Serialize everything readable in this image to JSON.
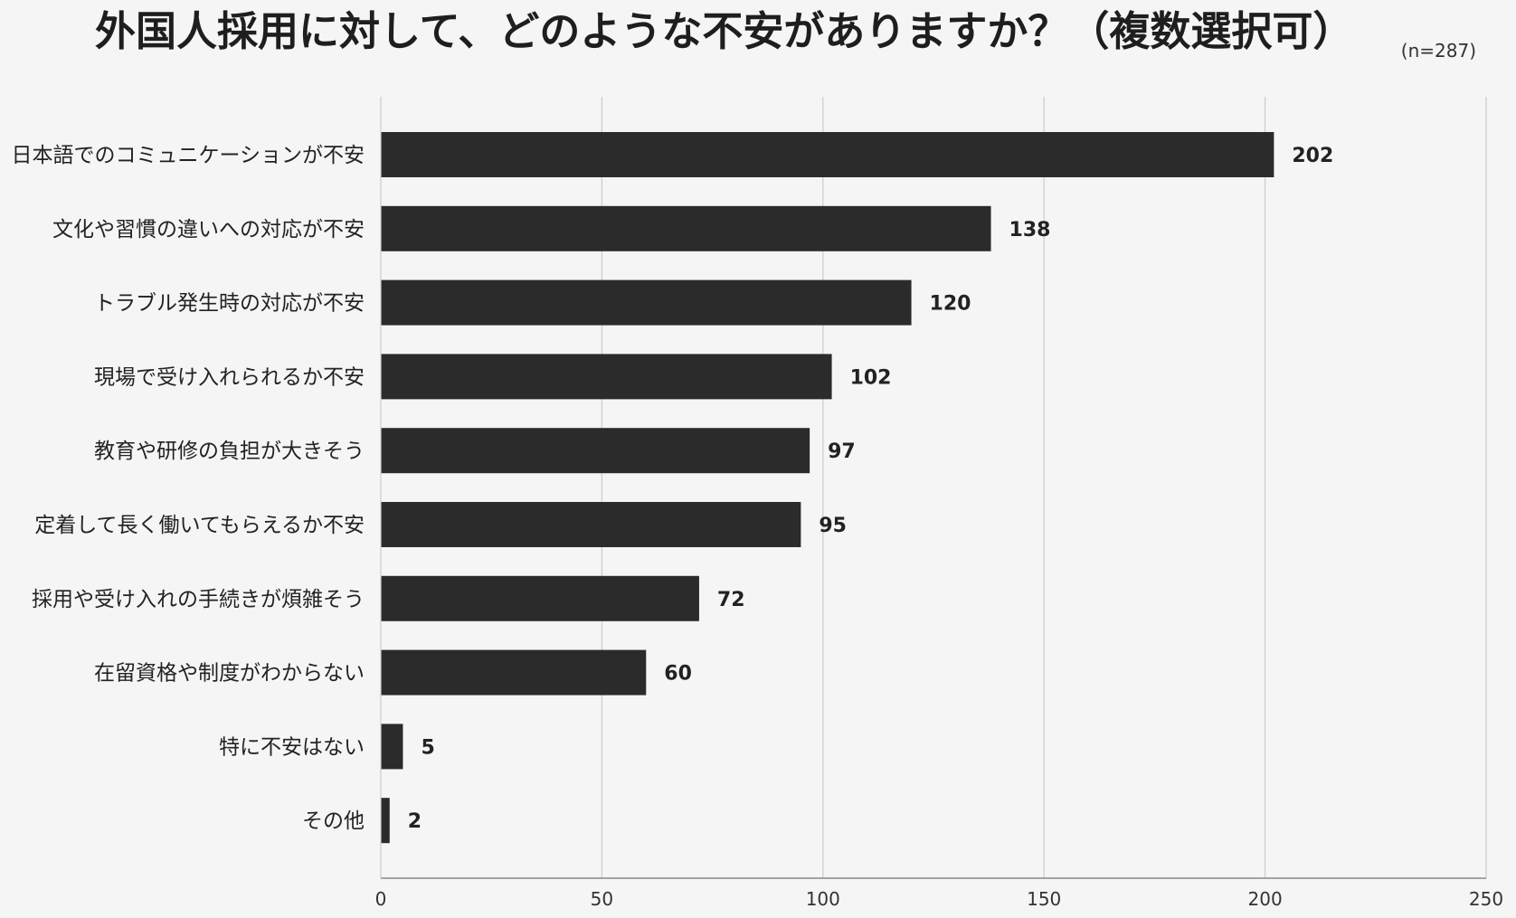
{
  "title": "外国人採用に対して、どのような不安がありますか？（複数選択可）",
  "sample_note": "(n=287)",
  "colors": {
    "bar": "#2b2b2b",
    "grid": "#cccccc",
    "axis": "#888888",
    "background": "#f5f5f5"
  },
  "chart_data": {
    "type": "bar",
    "orientation": "horizontal",
    "categories": [
      "日本語でのコミュニケーションが不安",
      "文化や習慣の違いへの対応が不安",
      "トラブル発生時の対応が不安",
      "現場で受け入れられるか不安",
      "教育や研修の負担が大きそう",
      "定着して長く働いてもらえるか不安",
      "採用や受け入れの手続きが煩雑そう",
      "在留資格や制度がわからない",
      "特に不安はない",
      "その他"
    ],
    "values": [
      202,
      138,
      120,
      102,
      97,
      95,
      72,
      60,
      5,
      2
    ],
    "xlim": [
      0,
      250
    ],
    "xticks": [
      0,
      50,
      100,
      150,
      200,
      250
    ],
    "grid": true,
    "data_labels": true
  }
}
